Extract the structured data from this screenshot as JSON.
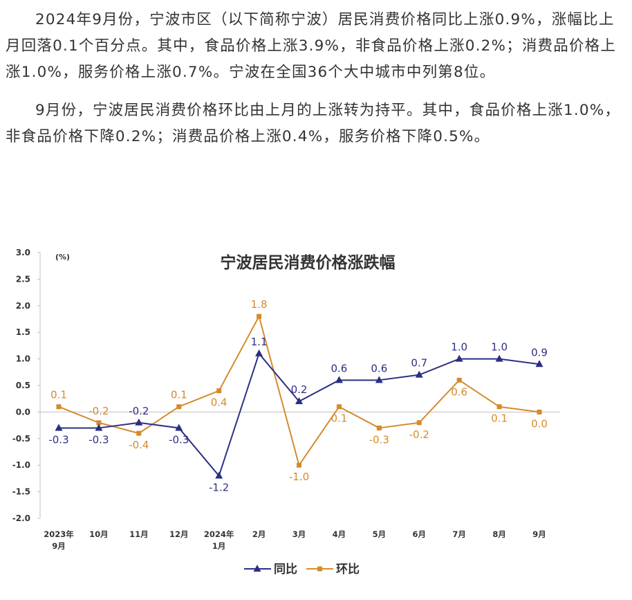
{
  "article": {
    "paragraphs": [
      "2024年9月份，宁波市区（以下简称宁波）居民消费价格同比上涨0.9%，涨幅比上月回落0.1个百分点。其中，食品价格上涨3.9%，非食品价格上涨0.2%；消费品价格上涨1.0%，服务价格上涨0.7%。宁波在全国36个大中城市中列第8位。",
      "9月份，宁波居民消费价格环比由上月的上涨转为持平。其中，食品价格上涨1.0%，非食品价格下降0.2%；消费品价格上涨0.4%，服务价格下降0.5%。"
    ]
  },
  "chart_data": {
    "type": "line",
    "title": "宁波居民消费价格涨跌幅",
    "ylabel": "(%)",
    "xlabel": "",
    "ylim": [
      -2.0,
      3.0
    ],
    "ytick_step": 0.5,
    "yticks": [
      "3.0",
      "2.5",
      "2.0",
      "1.5",
      "1.0",
      "0.5",
      "0.0",
      "-0.5",
      "-1.0",
      "-1.5",
      "-2.0"
    ],
    "categories": [
      [
        "2023年",
        "9月"
      ],
      [
        "10月"
      ],
      [
        "11月"
      ],
      [
        "12月"
      ],
      [
        "2024年",
        "1月"
      ],
      [
        "2月"
      ],
      [
        "3月"
      ],
      [
        "4月"
      ],
      [
        "5月"
      ],
      [
        "6月"
      ],
      [
        "7月"
      ],
      [
        "8月"
      ],
      [
        "9月"
      ]
    ],
    "series": [
      {
        "name": "同比",
        "color": "#2b2f83",
        "marker": "triangle",
        "values": [
          -0.3,
          -0.3,
          -0.2,
          -0.3,
          -1.2,
          1.1,
          0.2,
          0.6,
          0.6,
          0.7,
          1.0,
          1.0,
          0.9
        ],
        "labels": [
          "-0.3",
          "-0.3",
          "-0.2",
          "-0.3",
          "-1.2",
          "1.1",
          "0.2",
          "0.6",
          "0.6",
          "0.7",
          "1.0",
          "1.0",
          "0.9"
        ],
        "label_positions": [
          "below",
          "below",
          "above",
          "below",
          "below",
          "above",
          "above",
          "above",
          "above",
          "above",
          "above",
          "above",
          "above"
        ]
      },
      {
        "name": "环比",
        "color": "#d58a2c",
        "marker": "square",
        "values": [
          0.1,
          -0.2,
          -0.4,
          0.1,
          0.4,
          1.8,
          -1.0,
          0.1,
          -0.3,
          -0.2,
          0.6,
          0.1,
          0.0
        ],
        "labels": [
          "0.1",
          "-0.2",
          "-0.4",
          "0.1",
          "0.4",
          "1.8",
          "-1.0",
          "0.1",
          "-0.3",
          "-0.2",
          "0.6",
          "0.1",
          "0.0"
        ],
        "label_positions": [
          "above",
          "above",
          "below",
          "above",
          "below",
          "above",
          "below",
          "below",
          "below",
          "below",
          "below",
          "below",
          "below"
        ]
      }
    ],
    "grid": false,
    "legend_position": "bottom-center"
  }
}
